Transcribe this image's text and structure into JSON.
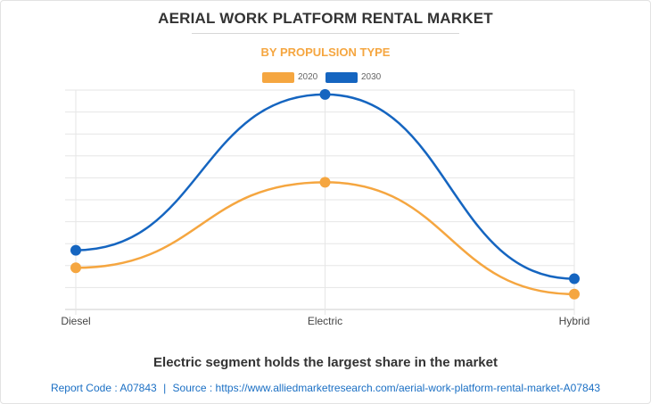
{
  "title": "AERIAL WORK PLATFORM RENTAL MARKET",
  "subtitle": "BY PROPULSION TYPE",
  "caption": "Electric segment holds the largest share in the market",
  "footer": {
    "report_code_label": "Report Code : A07843",
    "separator": "|",
    "source_label": "Source : https://www.alliedmarketresearch.com/aerial-work-platform-rental-market-A07843"
  },
  "chart_data": {
    "type": "line",
    "title": "AERIAL WORK PLATFORM RENTAL MARKET",
    "subtitle": "BY PROPULSION TYPE",
    "categories": [
      "Diesel",
      "Electric",
      "Hybrid"
    ],
    "xlabel": "",
    "ylabel": "",
    "ylim": [
      0,
      10
    ],
    "grid": true,
    "smooth": true,
    "legend_position": "top-center",
    "series": [
      {
        "name": "2020",
        "color": "#f5a640",
        "values": [
          1.9,
          5.8,
          0.7
        ]
      },
      {
        "name": "2030",
        "color": "#1565c0",
        "values": [
          2.7,
          9.8,
          1.4
        ]
      }
    ]
  }
}
